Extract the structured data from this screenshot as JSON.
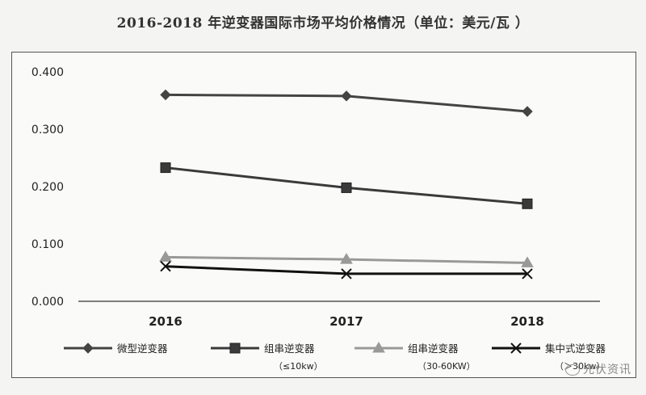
{
  "chart_data": {
    "type": "line",
    "title": "2016-2018 年逆变器国际市场平均价格情况（单位：美元/瓦 ）",
    "categories": [
      "2016",
      "2017",
      "2018"
    ],
    "ylim": [
      0,
      0.4
    ],
    "yticks": [
      "0.000",
      "0.100",
      "0.200",
      "0.300",
      "0.400"
    ],
    "grid": false,
    "legend_position": "bottom",
    "series": [
      {
        "name": "微型逆变器",
        "subname": "",
        "values": [
          0.36,
          0.358,
          0.331
        ],
        "color": "#444444",
        "marker": "diamond"
      },
      {
        "name": "组串逆变器",
        "subname": "（≤10kw）",
        "values": [
          0.233,
          0.198,
          0.17
        ],
        "color": "#3a3a3a",
        "marker": "square"
      },
      {
        "name": "组串逆变器",
        "subname": "（30-60KW）",
        "values": [
          0.077,
          0.073,
          0.067
        ],
        "color": "#999999",
        "marker": "triangle"
      },
      {
        "name": "集中式逆变器",
        "subname": "（＞30kw）",
        "values": [
          0.061,
          0.048,
          0.048
        ],
        "color": "#111111",
        "marker": "x"
      }
    ]
  },
  "watermark": {
    "text": "光伏资讯",
    "icon": "wechat-icon"
  }
}
